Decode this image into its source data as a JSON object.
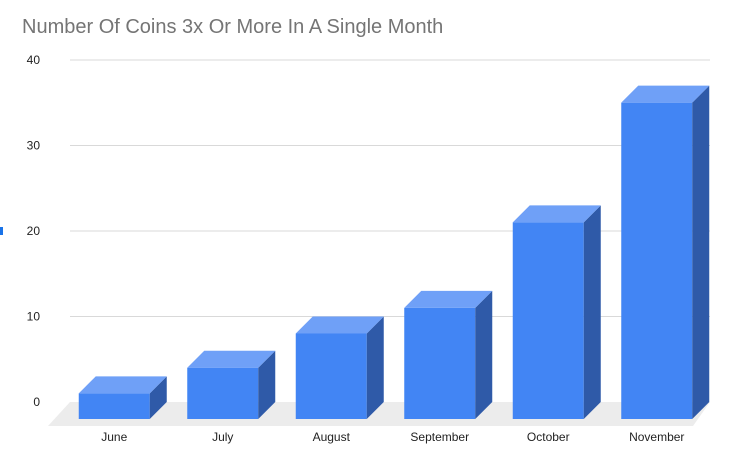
{
  "chart_data": {
    "type": "bar",
    "title": "Number Of Coins 3x Or More In A Single Month",
    "categories": [
      "June",
      "July",
      "August",
      "September",
      "October",
      "November"
    ],
    "values": [
      3,
      6,
      10,
      13,
      23,
      37
    ],
    "xlabel": "",
    "ylabel": "",
    "ylim": [
      0,
      40
    ],
    "yticks": [
      "0",
      "10",
      "20",
      "30",
      "40"
    ],
    "grid": true,
    "legend": "none",
    "bar_style": "3d",
    "colors": {
      "bar_front": "#4285f4",
      "bar_top": "#6fa0f7",
      "bar_side": "#2f5aa8",
      "floor": "#ececec",
      "grid": "#d9d9d9",
      "title": "#757575"
    }
  }
}
